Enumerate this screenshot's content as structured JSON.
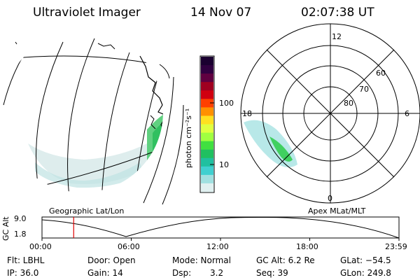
{
  "header": {
    "instrument": "Ultraviolet Imager",
    "date": "14 Nov 07",
    "time": "02:07:38 UT"
  },
  "colorbar": {
    "label": "photon cm⁻²s⁻¹",
    "ticks": [
      "100",
      "10"
    ],
    "colors": [
      "#1a0030",
      "#300040",
      "#600040",
      "#a00020",
      "#d00010",
      "#ff4000",
      "#ff9000",
      "#ffe020",
      "#e0ff40",
      "#a0ff40",
      "#40e040",
      "#20c060",
      "#20c0a0",
      "#40d0d0",
      "#a0e0e0",
      "#e0f0f0"
    ]
  },
  "geo_map": {
    "caption": "Geographic Lat/Lon"
  },
  "polar_plot": {
    "caption": "Apex MLat/MLT",
    "mlt_labels": {
      "top": "12",
      "left": "18",
      "right": "6",
      "bottom": "0"
    },
    "lat_labels": [
      "60",
      "70",
      "80"
    ]
  },
  "altitude_plot": {
    "ylabel": "GC Alt",
    "yticks": [
      "9.0",
      "1.8"
    ],
    "xticks": [
      "00:00",
      "06:00",
      "12:00",
      "18:00",
      "23:59"
    ],
    "current_time_hours": 2.13
  },
  "info": {
    "flt": "Flt: LBHL",
    "door": "Door: Open",
    "mode": "Mode: Normal",
    "gc_alt": "GC Alt: 6.2 Re",
    "glat": "GLat: −54.5",
    "ip": "IP: 36.0",
    "gain": "Gain: 14",
    "dsp_label": "Dsp:",
    "dsp_value": "3.2",
    "seq": "Seq: 39",
    "glon": "GLon: 249.8"
  }
}
